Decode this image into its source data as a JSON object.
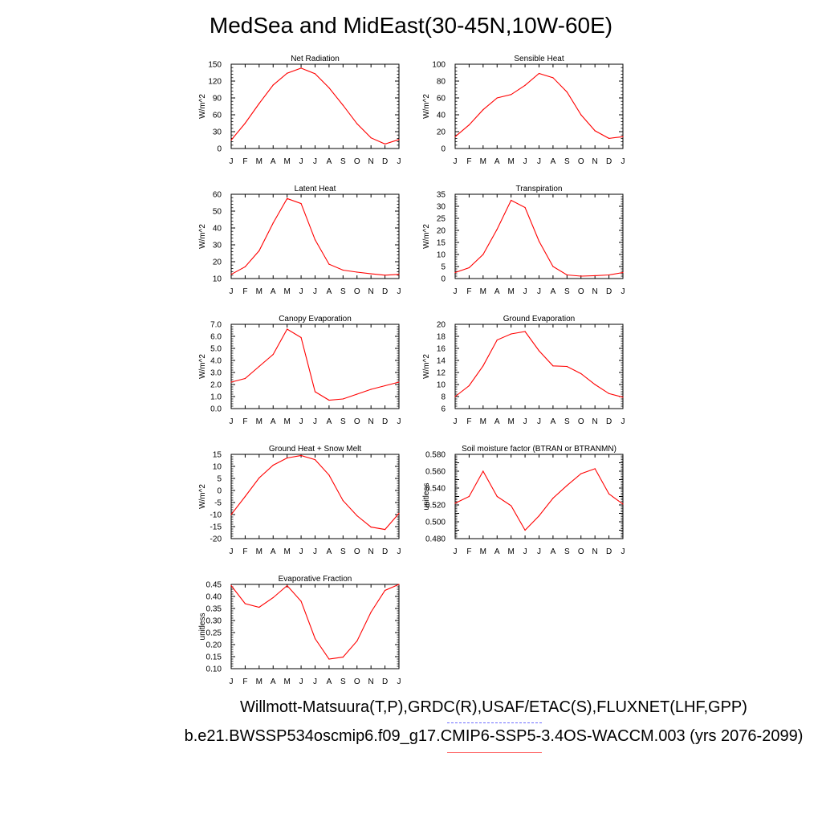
{
  "title": "MedSea and MidEast(30-45N,10W-60E)",
  "footer": {
    "obs": "Willmott-Matsuura(T,P),GRDC(R),USAF/ETAC(S),FLUXNET(LHF,GPP)",
    "model": "b.e21.BWSSP534oscmip6.f09_g17.CMIP6-SSP5-3.4OS-WACCM.003 (yrs 2076-2099)"
  },
  "colors": {
    "series": "#ff0000",
    "obs_legend": "#6b6bff",
    "model_legend": "#ff6b6b"
  },
  "chart_data": [
    {
      "type": "line",
      "title": "Net Radiation",
      "ylabel": "W/m^2",
      "x": [
        "J",
        "F",
        "M",
        "A",
        "M",
        "J",
        "J",
        "A",
        "S",
        "O",
        "N",
        "D",
        "J"
      ],
      "ylim": [
        0,
        150
      ],
      "yticks": [
        0,
        30,
        60,
        90,
        120,
        150
      ],
      "tick_labels": [
        "0",
        "30",
        "60",
        "90",
        "120",
        "150"
      ],
      "series": [
        {
          "values": [
            15,
            45,
            80,
            113,
            134,
            143,
            133,
            108,
            77,
            44,
            19,
            8,
            16
          ]
        }
      ]
    },
    {
      "type": "line",
      "title": "Sensible Heat",
      "ylabel": "W/m^2",
      "x": [
        "J",
        "F",
        "M",
        "A",
        "M",
        "J",
        "J",
        "A",
        "S",
        "O",
        "N",
        "D",
        "J"
      ],
      "ylim": [
        0,
        100
      ],
      "yticks": [
        0,
        20,
        40,
        60,
        80,
        100
      ],
      "tick_labels": [
        "0",
        "20",
        "40",
        "60",
        "80",
        "100"
      ],
      "series": [
        {
          "values": [
            14,
            28,
            46,
            60,
            64,
            75,
            89,
            84,
            67,
            40,
            21,
            12,
            14
          ]
        }
      ]
    },
    {
      "type": "line",
      "title": "Latent Heat",
      "ylabel": "W/m^2",
      "x": [
        "J",
        "F",
        "M",
        "A",
        "M",
        "J",
        "J",
        "A",
        "S",
        "O",
        "N",
        "D",
        "J"
      ],
      "ylim": [
        10,
        60
      ],
      "yticks": [
        10,
        20,
        30,
        40,
        50,
        60
      ],
      "tick_labels": [
        "10",
        "20",
        "30",
        "40",
        "50",
        "60"
      ],
      "series": [
        {
          "values": [
            12.5,
            17,
            26.5,
            43,
            57.5,
            54.5,
            33,
            18.5,
            15,
            13.8,
            12.8,
            12,
            12.5
          ]
        }
      ]
    },
    {
      "type": "line",
      "title": "Transpiration",
      "ylabel": "W/m^2",
      "x": [
        "J",
        "F",
        "M",
        "A",
        "M",
        "J",
        "J",
        "A",
        "S",
        "O",
        "N",
        "D",
        "J"
      ],
      "ylim": [
        0,
        35
      ],
      "yticks": [
        0,
        5,
        10,
        15,
        20,
        25,
        30,
        35
      ],
      "tick_labels": [
        "0",
        "5",
        "10",
        "15",
        "20",
        "25",
        "30",
        "35"
      ],
      "series": [
        {
          "values": [
            2.5,
            4.5,
            10,
            20.5,
            32.5,
            29.5,
            15.5,
            5,
            1.5,
            1,
            1.2,
            1.5,
            2.5
          ]
        }
      ]
    },
    {
      "type": "line",
      "title": "Canopy Evaporation",
      "ylabel": "W/m^2",
      "x": [
        "J",
        "F",
        "M",
        "A",
        "M",
        "J",
        "J",
        "A",
        "S",
        "O",
        "N",
        "D",
        "J"
      ],
      "ylim": [
        0,
        7
      ],
      "yticks": [
        0,
        1,
        2,
        3,
        4,
        5,
        6,
        7
      ],
      "tick_labels": [
        "0.0",
        "1.0",
        "2.0",
        "3.0",
        "4.0",
        "5.0",
        "6.0",
        "7.0"
      ],
      "series": [
        {
          "values": [
            2.2,
            2.5,
            3.5,
            4.5,
            6.6,
            5.9,
            1.4,
            0.7,
            0.8,
            1.2,
            1.6,
            1.9,
            2.2
          ]
        }
      ]
    },
    {
      "type": "line",
      "title": "Ground Evaporation",
      "ylabel": "W/m^2",
      "x": [
        "J",
        "F",
        "M",
        "A",
        "M",
        "J",
        "J",
        "A",
        "S",
        "O",
        "N",
        "D",
        "J"
      ],
      "ylim": [
        6,
        20
      ],
      "yticks": [
        6,
        8,
        10,
        12,
        14,
        16,
        18,
        20
      ],
      "tick_labels": [
        "6",
        "8",
        "10",
        "12",
        "14",
        "16",
        "18",
        "20"
      ],
      "series": [
        {
          "values": [
            8,
            9.8,
            13.1,
            17.4,
            18.4,
            18.8,
            15.6,
            13.1,
            13,
            11.8,
            10,
            8.5,
            7.9
          ]
        }
      ]
    },
    {
      "type": "line",
      "title": "Ground Heat + Snow Melt",
      "ylabel": "W/m^2",
      "x": [
        "J",
        "F",
        "M",
        "A",
        "M",
        "J",
        "J",
        "A",
        "S",
        "O",
        "N",
        "D",
        "J"
      ],
      "ylim": [
        -20,
        15
      ],
      "yticks": [
        -20,
        -15,
        -10,
        -5,
        0,
        5,
        10,
        15
      ],
      "tick_labels": [
        "-20",
        "-15",
        "-10",
        "-5",
        "0",
        "5",
        "10",
        "15"
      ],
      "series": [
        {
          "values": [
            -10,
            -2.5,
            5.2,
            10.5,
            13.5,
            14.5,
            12.8,
            6.4,
            -4.2,
            -10.5,
            -15.2,
            -16.2,
            -9.5
          ]
        }
      ]
    },
    {
      "type": "line",
      "title": "Soil moisture factor (BTRAN or BTRANMN)",
      "ylabel": "unitless",
      "x": [
        "J",
        "F",
        "M",
        "A",
        "M",
        "J",
        "J",
        "A",
        "S",
        "O",
        "N",
        "D",
        "J"
      ],
      "ylim": [
        0.48,
        0.58
      ],
      "yticks": [
        0.48,
        0.49,
        0.5,
        0.51,
        0.52,
        0.53,
        0.54,
        0.55,
        0.56,
        0.57,
        0.58
      ],
      "tick_labels": [
        "0.480",
        "",
        "0.500",
        "",
        "0.520",
        "",
        "0.540",
        "",
        "0.560",
        "",
        "0.580"
      ],
      "series": [
        {
          "values": [
            0.522,
            0.53,
            0.56,
            0.53,
            0.519,
            0.49,
            0.507,
            0.528,
            0.543,
            0.557,
            0.563,
            0.533,
            0.521
          ]
        }
      ]
    },
    {
      "type": "line",
      "title": "Evaporative Fraction",
      "ylabel": "unitless",
      "x": [
        "J",
        "F",
        "M",
        "A",
        "M",
        "J",
        "J",
        "A",
        "S",
        "O",
        "N",
        "D",
        "J"
      ],
      "ylim": [
        0.1,
        0.45
      ],
      "yticks": [
        0.1,
        0.15,
        0.2,
        0.25,
        0.3,
        0.35,
        0.4,
        0.45
      ],
      "tick_labels": [
        "0.10",
        "0.15",
        "0.20",
        "0.25",
        "0.30",
        "0.35",
        "0.40",
        "0.45"
      ],
      "series": [
        {
          "values": [
            0.445,
            0.37,
            0.355,
            0.395,
            0.445,
            0.38,
            0.225,
            0.14,
            0.148,
            0.215,
            0.335,
            0.425,
            0.45
          ]
        }
      ]
    }
  ]
}
